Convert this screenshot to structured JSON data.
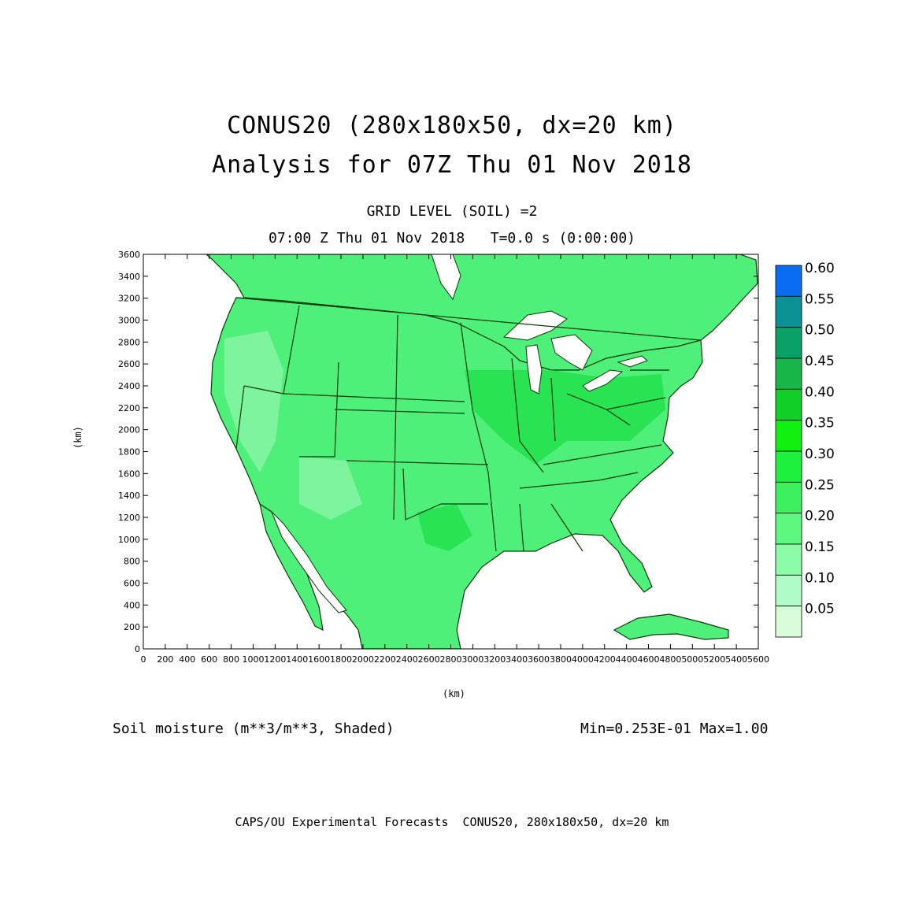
{
  "header": {
    "title_line1": "CONUS20 (280x180x50, dx=20 km)",
    "title_line2": "Analysis for 07Z Thu 01 Nov 2018",
    "subtitle_line1": "GRID LEVEL (SOIL) =2",
    "subtitle_line2": "07:00 Z Thu 01 Nov 2018   T=0.0 s (0:00:00)"
  },
  "axes": {
    "xlabel": "(km)",
    "ylabel": "(km)",
    "x_range": [
      0,
      5600
    ],
    "y_range": [
      0,
      3600
    ],
    "x_ticks": [
      "0",
      "200",
      "400",
      "600",
      "800",
      "1000",
      "1200",
      "1400",
      "1600",
      "1800",
      "2000",
      "2200",
      "2400",
      "2600",
      "2800",
      "3000",
      "3200",
      "3400",
      "3600",
      "3800",
      "4000",
      "4200",
      "4400",
      "4600",
      "4800",
      "5000",
      "5200",
      "5400",
      "5600"
    ],
    "y_ticks": [
      "0",
      "200",
      "400",
      "600",
      "800",
      "1000",
      "1200",
      "1400",
      "1600",
      "1800",
      "2000",
      "2200",
      "2400",
      "2600",
      "2800",
      "3000",
      "3200",
      "3400",
      "3600"
    ]
  },
  "legend": {
    "levels": [
      "0.60",
      "0.55",
      "0.50",
      "0.45",
      "0.40",
      "0.35",
      "0.30",
      "0.25",
      "0.20",
      "0.15",
      "0.10",
      "0.05"
    ],
    "colors": [
      "#0a6cf0",
      "#0a9196",
      "#0aa066",
      "#18b54a",
      "#10d028",
      "#10ef10",
      "#1ef040",
      "#3cf060",
      "#5ef880",
      "#8cfca8",
      "#b0fcc8",
      "#d8fcd8"
    ]
  },
  "field": {
    "variable": "Soil moisture (m**3/m**3, Shaded)",
    "minmax": "Min=0.253E-01 Max=1.00",
    "land_color": "#4ef07a",
    "wet_color": "#22e048",
    "dry_color": "#8cf5a8",
    "border_color": "#0a3a0a",
    "water_color": "#ffffff"
  },
  "footer": "CAPS/OU Experimental Forecasts  CONUS20, 280x180x50, dx=20 km"
}
